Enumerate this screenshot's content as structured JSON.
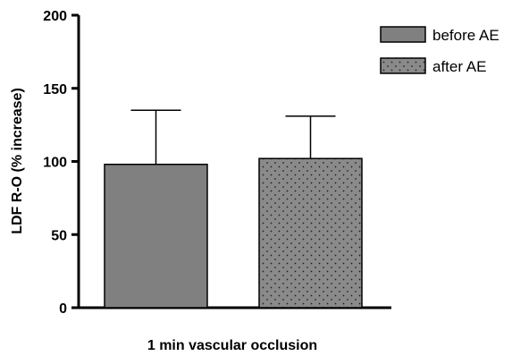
{
  "chart_data": {
    "type": "bar",
    "title": "",
    "xlabel": "1 min vascular occlusion",
    "ylabel": "LDF R-O (% increase)",
    "ylim": [
      0,
      200
    ],
    "yticks": [
      0,
      50,
      100,
      150,
      200
    ],
    "categories": [
      ""
    ],
    "series": [
      {
        "name": "before AE",
        "values": [
          98
        ],
        "error_upper": [
          135
        ],
        "color": "#808080",
        "pattern": "solid"
      },
      {
        "name": "after AE",
        "values": [
          102
        ],
        "error_upper": [
          131
        ],
        "color": "#808080",
        "pattern": "dotted"
      }
    ],
    "legend_position": "top-right",
    "grid": false
  }
}
